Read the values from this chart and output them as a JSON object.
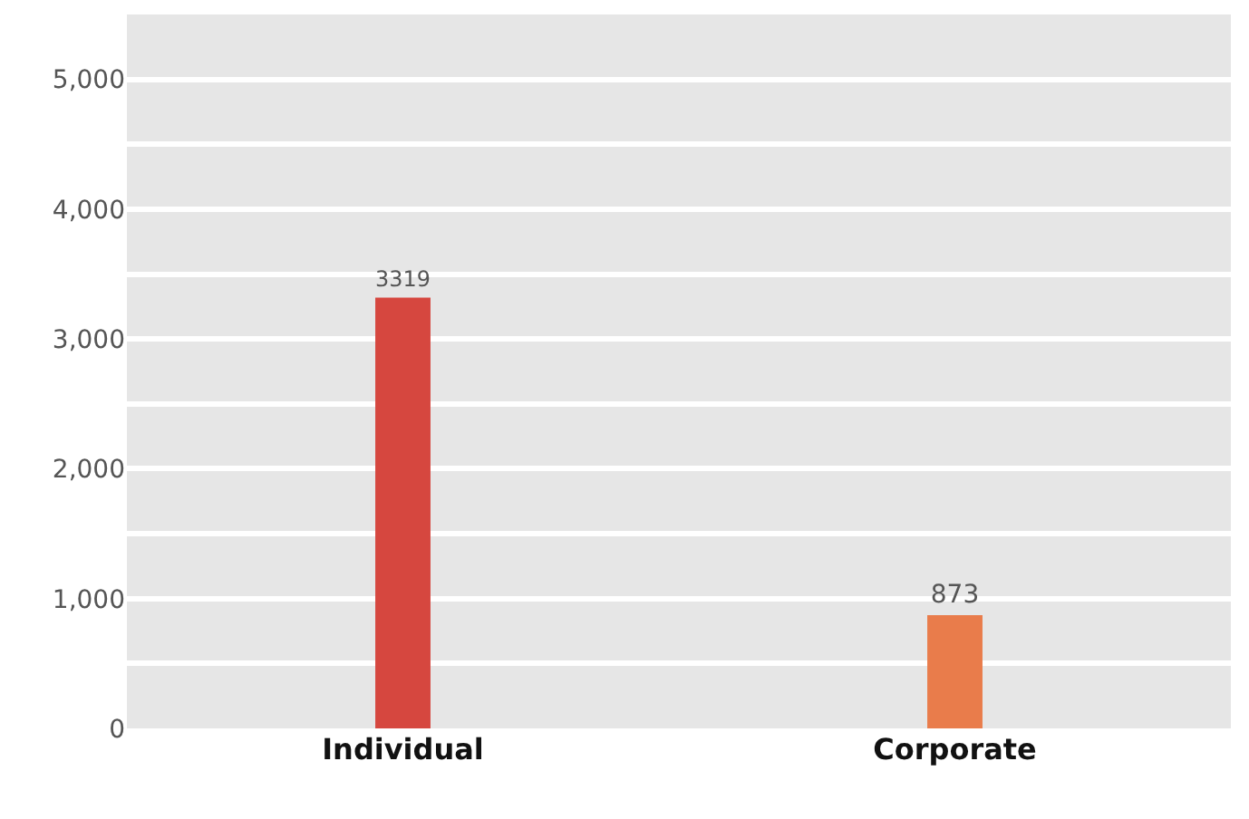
{
  "chart_data": {
    "type": "bar",
    "categories": [
      "Individual",
      "Corporate"
    ],
    "values": [
      3319,
      873
    ],
    "colors": [
      "#d6473f",
      "#e97c4b"
    ],
    "ylim": [
      0,
      5500
    ],
    "yticks": [
      0,
      {
        "value": 500,
        "label": null
      },
      {
        "value": 1000,
        "label": "1,000"
      },
      {
        "value": 1500,
        "label": null
      },
      {
        "value": 2000,
        "label": "2,000"
      },
      {
        "value": 2500,
        "label": null
      },
      {
        "value": 3000,
        "label": "3,000"
      },
      {
        "value": 3500,
        "label": null
      },
      {
        "value": 4000,
        "label": "4,000"
      },
      {
        "value": 4500,
        "label": null
      },
      {
        "value": 5000,
        "label": "5,000"
      }
    ],
    "grid": "y",
    "data_labels": true,
    "legend": false
  }
}
